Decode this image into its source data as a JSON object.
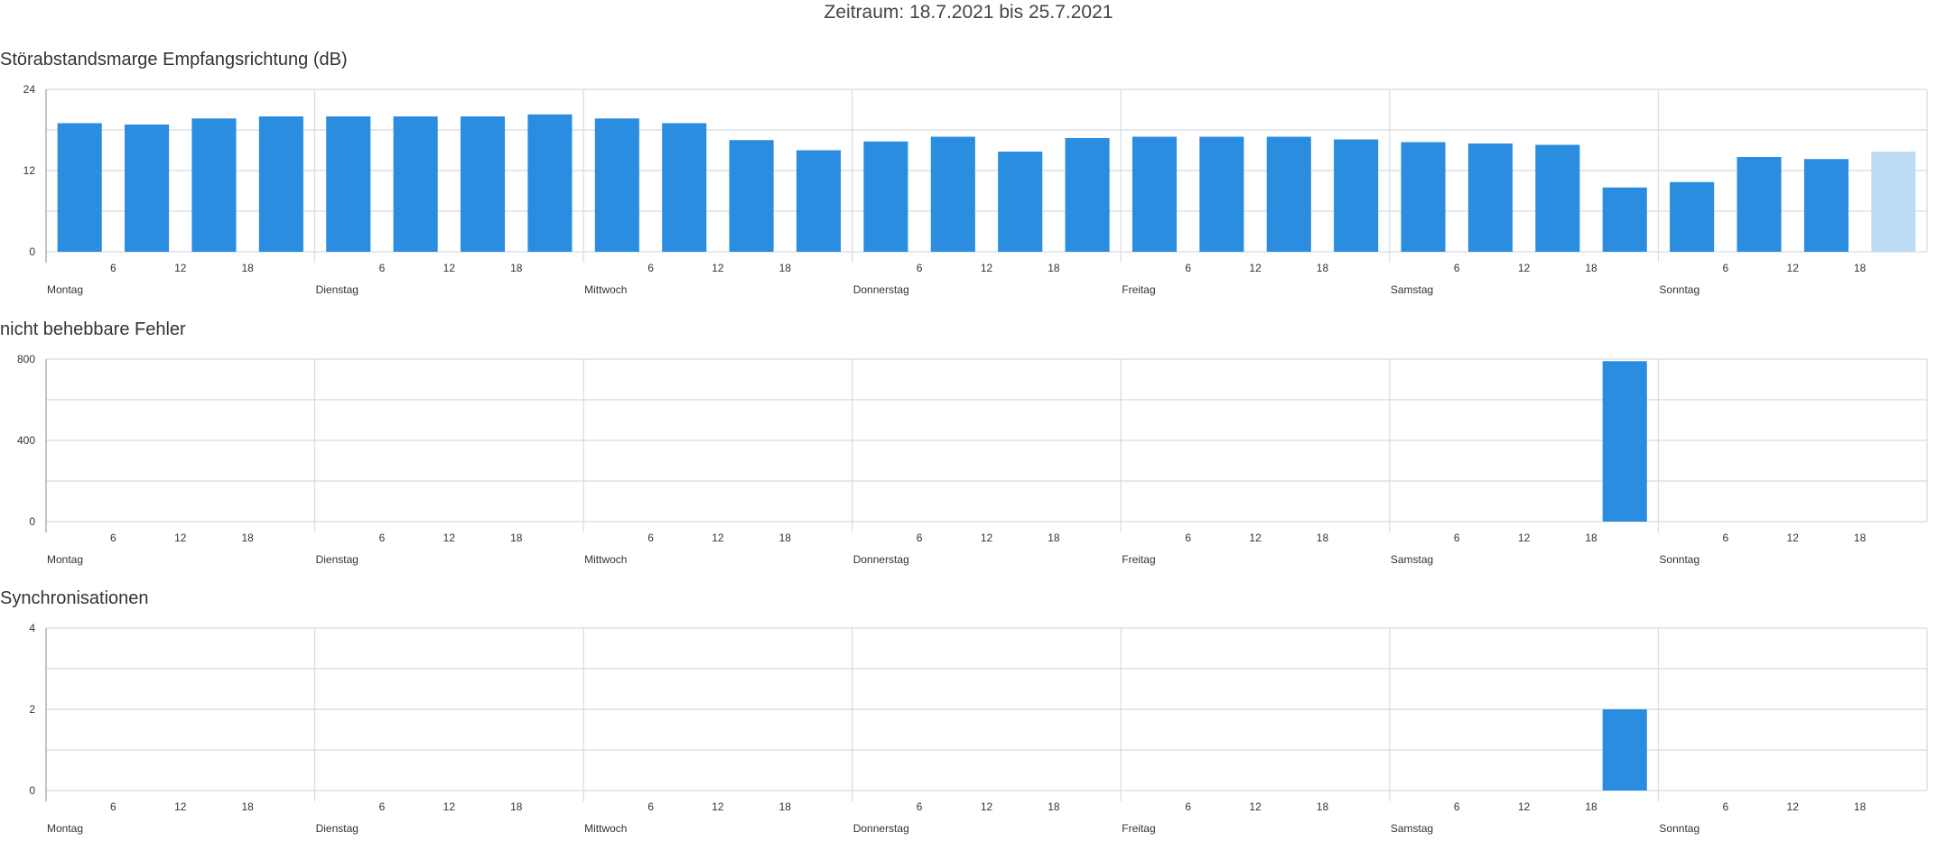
{
  "header": {
    "period": "Zeitraum: 18.7.2021 bis 25.7.2021"
  },
  "colors": {
    "bar": "#2a8de0",
    "bar_partial": "#bddcf4",
    "grid": "#d7dbe0",
    "axis": "#9aa4ae"
  },
  "day_labels": [
    "Montag",
    "Dienstag",
    "Mittwoch",
    "Donnerstag",
    "Freitag",
    "Samstag",
    "Sonntag"
  ],
  "hour_ticks": [
    "6",
    "12",
    "18"
  ],
  "chart_data": [
    {
      "type": "bar",
      "title": "Störabstandsmarge Empfangsrichtung (dB)",
      "ylim": [
        0,
        24
      ],
      "yticks": [
        "0",
        "12",
        "24"
      ],
      "grid": true,
      "bucket_hours": 6,
      "values": [
        19,
        18.8,
        19.7,
        20,
        20,
        20,
        20,
        20.3,
        19.7,
        19,
        16.5,
        15,
        16.3,
        17,
        14.8,
        16.8,
        17,
        17,
        17,
        16.6,
        16.2,
        16,
        15.8,
        9.5,
        10.3,
        14,
        13.7,
        14.8
      ],
      "partial_last": true
    },
    {
      "type": "bar",
      "title": "nicht behebbare Fehler",
      "ylim": [
        0,
        800
      ],
      "yticks": [
        "0",
        "400",
        "800"
      ],
      "grid": true,
      "bucket_hours": 6,
      "values": [
        0,
        0,
        0,
        0,
        0,
        0,
        0,
        0,
        0,
        0,
        0,
        0,
        0,
        0,
        0,
        0,
        0,
        0,
        0,
        0,
        0,
        0,
        0,
        790,
        0,
        0,
        0,
        0
      ],
      "partial_last": false
    },
    {
      "type": "bar",
      "title": "Synchronisationen",
      "ylim": [
        0,
        4
      ],
      "yticks": [
        "0",
        "2",
        "4"
      ],
      "grid": true,
      "bucket_hours": 6,
      "values": [
        0,
        0,
        0,
        0,
        0,
        0,
        0,
        0,
        0,
        0,
        0,
        0,
        0,
        0,
        0,
        0,
        0,
        0,
        0,
        0,
        0,
        0,
        0,
        2,
        0,
        0,
        0,
        0
      ],
      "partial_last": false
    }
  ]
}
